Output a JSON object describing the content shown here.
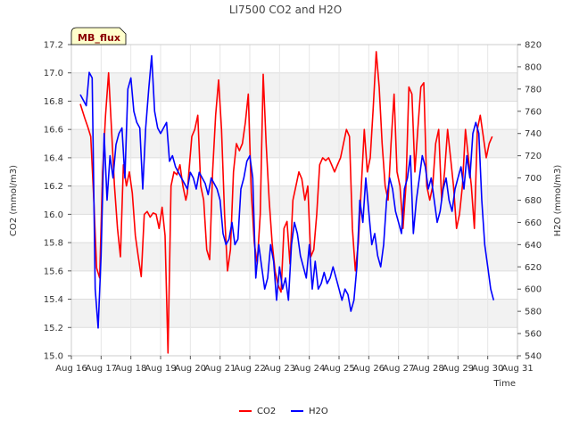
{
  "chart_data": {
    "type": "line",
    "title": "LI7500 CO2 and H2O",
    "badge": "MB_flux",
    "xlabel": "Time",
    "ylabel_left": "CO2 (mmol/m3)",
    "ylabel_right": "H2O (mmol/m3)",
    "x_ticks": [
      "Aug 16",
      "Aug 17",
      "Aug 18",
      "Aug 19",
      "Aug 20",
      "Aug 21",
      "Aug 22",
      "Aug 23",
      "Aug 24",
      "Aug 25",
      "Aug 26",
      "Aug 27",
      "Aug 28",
      "Aug 29",
      "Aug 30",
      "Aug 31"
    ],
    "xlim": [
      16,
      31
    ],
    "ylim_left": [
      15.0,
      17.2
    ],
    "ylim_right": [
      540,
      820
    ],
    "yticks_left": [
      "15.0",
      "15.2",
      "15.4",
      "15.6",
      "15.8",
      "16.0",
      "16.2",
      "16.4",
      "16.6",
      "16.8",
      "17.0",
      "17.2"
    ],
    "yticks_right": [
      "540",
      "560",
      "580",
      "600",
      "620",
      "640",
      "660",
      "680",
      "700",
      "720",
      "740",
      "760",
      "780",
      "800",
      "820"
    ],
    "grid": true,
    "legend_position": "bottom-center",
    "series": [
      {
        "name": "CO2",
        "color": "#ff0000",
        "axis": "left",
        "x": [
          16.3,
          16.45,
          16.55,
          16.65,
          16.75,
          16.85,
          16.95,
          17.05,
          17.15,
          17.25,
          17.35,
          17.45,
          17.55,
          17.65,
          17.75,
          17.85,
          17.95,
          18.05,
          18.15,
          18.25,
          18.35,
          18.45,
          18.55,
          18.65,
          18.75,
          18.85,
          18.95,
          19.05,
          19.15,
          19.25,
          19.35,
          19.45,
          19.55,
          19.65,
          19.75,
          19.85,
          19.9,
          19.95,
          20.05,
          20.15,
          20.25,
          20.35,
          20.45,
          20.55,
          20.65,
          20.75,
          20.85,
          20.95,
          21.05,
          21.15,
          21.25,
          21.35,
          21.45,
          21.55,
          21.65,
          21.75,
          21.85,
          21.95,
          22.05,
          22.15,
          22.25,
          22.35,
          22.45,
          22.55,
          22.65,
          22.75,
          22.85,
          22.95,
          23.05,
          23.15,
          23.25,
          23.35,
          23.45,
          23.55,
          23.65,
          23.75,
          23.85,
          23.95,
          24.05,
          24.15,
          24.25,
          24.35,
          24.45,
          24.55,
          24.65,
          24.75,
          24.85,
          24.95,
          25.05,
          25.15,
          25.25,
          25.35,
          25.45,
          25.55,
          25.65,
          25.75,
          25.85,
          25.95,
          26.05,
          26.15,
          26.25,
          26.35,
          26.45,
          26.55,
          26.65,
          26.75,
          26.85,
          26.95,
          27.05,
          27.15,
          27.25,
          27.35,
          27.45,
          27.55,
          27.65,
          27.75,
          27.85,
          27.95,
          28.05,
          28.15,
          28.25,
          28.35,
          28.45,
          28.55,
          28.65,
          28.75,
          28.85,
          28.95,
          29.05,
          29.15,
          29.25,
          29.35,
          29.45,
          29.55,
          29.65,
          29.75,
          29.85,
          29.95,
          30.05,
          30.15
        ],
        "values": [
          16.78,
          16.68,
          16.62,
          16.55,
          16.12,
          15.62,
          15.55,
          16.3,
          16.7,
          17.0,
          16.6,
          16.2,
          15.9,
          15.7,
          16.35,
          16.2,
          16.3,
          16.15,
          15.85,
          15.7,
          15.56,
          16.0,
          16.02,
          15.98,
          16.01,
          16.0,
          15.9,
          16.05,
          15.85,
          15.02,
          16.2,
          16.3,
          16.28,
          16.35,
          16.2,
          16.1,
          16.15,
          16.3,
          16.55,
          16.6,
          16.7,
          16.2,
          16.1,
          15.75,
          15.68,
          16.3,
          16.7,
          16.95,
          16.6,
          16.0,
          15.6,
          15.75,
          16.3,
          16.5,
          16.45,
          16.5,
          16.65,
          16.85,
          16.15,
          15.8,
          15.65,
          16.0,
          16.99,
          16.5,
          16.1,
          15.8,
          15.6,
          15.5,
          15.45,
          15.9,
          15.95,
          15.65,
          16.1,
          16.2,
          16.3,
          16.25,
          16.1,
          16.2,
          15.7,
          15.75,
          16.0,
          16.35,
          16.4,
          16.38,
          16.4,
          16.35,
          16.3,
          16.35,
          16.4,
          16.5,
          16.6,
          16.55,
          15.9,
          15.6,
          15.8,
          16.2,
          16.6,
          16.3,
          16.4,
          16.75,
          17.15,
          16.9,
          16.5,
          16.2,
          16.1,
          16.5,
          16.85,
          16.3,
          16.2,
          15.9,
          16.2,
          16.9,
          16.85,
          16.3,
          16.6,
          16.9,
          16.93,
          16.2,
          16.1,
          16.2,
          16.5,
          16.6,
          16.1,
          16.3,
          16.6,
          16.4,
          16.2,
          15.9,
          16.0,
          16.2,
          16.6,
          16.4,
          16.2,
          15.9,
          16.6,
          16.7,
          16.55,
          16.4,
          16.5,
          16.55
        ],
        "values_note": "",
        "dummy": "",
        "x2": [],
        "values2": []
      },
      {
        "name": "H2O",
        "color": "#0000ff",
        "axis": "right",
        "x": [
          16.3,
          16.4,
          16.5,
          16.6,
          16.7,
          16.8,
          16.9,
          17.0,
          17.1,
          17.2,
          17.3,
          17.4,
          17.5,
          17.6,
          17.7,
          17.8,
          17.9,
          18.0,
          18.1,
          18.2,
          18.3,
          18.4,
          18.5,
          18.6,
          18.7,
          18.8,
          18.9,
          19.0,
          19.1,
          19.2,
          19.3,
          19.4,
          19.5,
          19.6,
          19.7,
          19.8,
          19.9,
          20.0,
          20.1,
          20.2,
          20.3,
          20.4,
          20.5,
          20.6,
          20.7,
          20.8,
          20.9,
          21.0,
          21.1,
          21.2,
          21.3,
          21.4,
          21.5,
          21.6,
          21.7,
          21.8,
          21.9,
          22.0,
          22.1,
          22.2,
          22.3,
          22.4,
          22.5,
          22.6,
          22.7,
          22.8,
          22.9,
          23.0,
          23.1,
          23.2,
          23.3,
          23.4,
          23.5,
          23.6,
          23.7,
          23.8,
          23.9,
          24.0,
          24.1,
          24.2,
          24.3,
          24.4,
          24.5,
          24.6,
          24.7,
          24.8,
          24.9,
          25.0,
          25.1,
          25.2,
          25.3,
          25.4,
          25.5,
          25.6,
          25.7,
          25.8,
          25.9,
          26.0,
          26.1,
          26.2,
          26.3,
          26.4,
          26.5,
          26.6,
          26.7,
          26.8,
          26.9,
          27.0,
          27.1,
          27.2,
          27.3,
          27.4,
          27.5,
          27.6,
          27.7,
          27.8,
          27.9,
          28.0,
          28.1,
          28.2,
          28.3,
          28.4,
          28.5,
          28.6,
          28.7,
          28.8,
          28.9,
          29.0,
          29.1,
          29.2,
          29.3,
          29.4,
          29.5,
          29.6,
          29.7,
          29.8,
          29.9,
          30.0,
          30.1,
          30.2
        ],
        "values": [
          775,
          770,
          765,
          795,
          790,
          600,
          565,
          630,
          740,
          680,
          720,
          700,
          730,
          740,
          745,
          700,
          780,
          790,
          760,
          750,
          745,
          690,
          745,
          780,
          810,
          760,
          745,
          740,
          745,
          750,
          715,
          720,
          710,
          705,
          700,
          695,
          690,
          705,
          700,
          690,
          705,
          700,
          695,
          685,
          700,
          695,
          690,
          680,
          650,
          640,
          645,
          660,
          640,
          645,
          690,
          700,
          715,
          720,
          700,
          610,
          640,
          620,
          600,
          610,
          640,
          625,
          590,
          620,
          600,
          610,
          590,
          640,
          660,
          650,
          630,
          620,
          610,
          640,
          600,
          625,
          600,
          605,
          615,
          605,
          610,
          620,
          610,
          600,
          590,
          600,
          595,
          580,
          590,
          620,
          680,
          660,
          700,
          670,
          640,
          650,
          630,
          620,
          640,
          680,
          700,
          690,
          670,
          660,
          650,
          690,
          700,
          720,
          650,
          680,
          700,
          720,
          710,
          690,
          700,
          680,
          660,
          670,
          690,
          700,
          680,
          670,
          690,
          700,
          710,
          690,
          720,
          700,
          740,
          750,
          740,
          680,
          640,
          620,
          600,
          590
        ]
      }
    ]
  }
}
